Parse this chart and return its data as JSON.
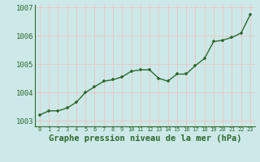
{
  "xlabel": "Graphe pression niveau de la mer (hPa)",
  "x": [
    0,
    1,
    2,
    3,
    4,
    5,
    6,
    7,
    8,
    9,
    10,
    11,
    12,
    13,
    14,
    15,
    16,
    17,
    18,
    19,
    20,
    21,
    22,
    23
  ],
  "y": [
    1003.2,
    1003.35,
    1003.35,
    1003.45,
    1003.65,
    1004.0,
    1004.2,
    1004.4,
    1004.45,
    1004.55,
    1004.75,
    1004.8,
    1004.8,
    1004.5,
    1004.4,
    1004.65,
    1004.65,
    1004.95,
    1005.2,
    1005.8,
    1005.85,
    1005.95,
    1006.1,
    1006.75
  ],
  "ylim": [
    1002.8,
    1007.1
  ],
  "yticks": [
    1003,
    1004,
    1005,
    1006,
    1007
  ],
  "ytick_labels": [
    "1003",
    "1004",
    "1005",
    "1006",
    "1007"
  ],
  "line_color": "#2d6a2d",
  "marker_color": "#2d6a2d",
  "bg_color": "#cce8e8",
  "grid_color": "#e8c8c8",
  "xlabel_color": "#2d6a2d",
  "xlabel_fontsize": 7.5,
  "tick_fontsize": 6.5,
  "marker_size": 3.5,
  "line_width": 1.0
}
